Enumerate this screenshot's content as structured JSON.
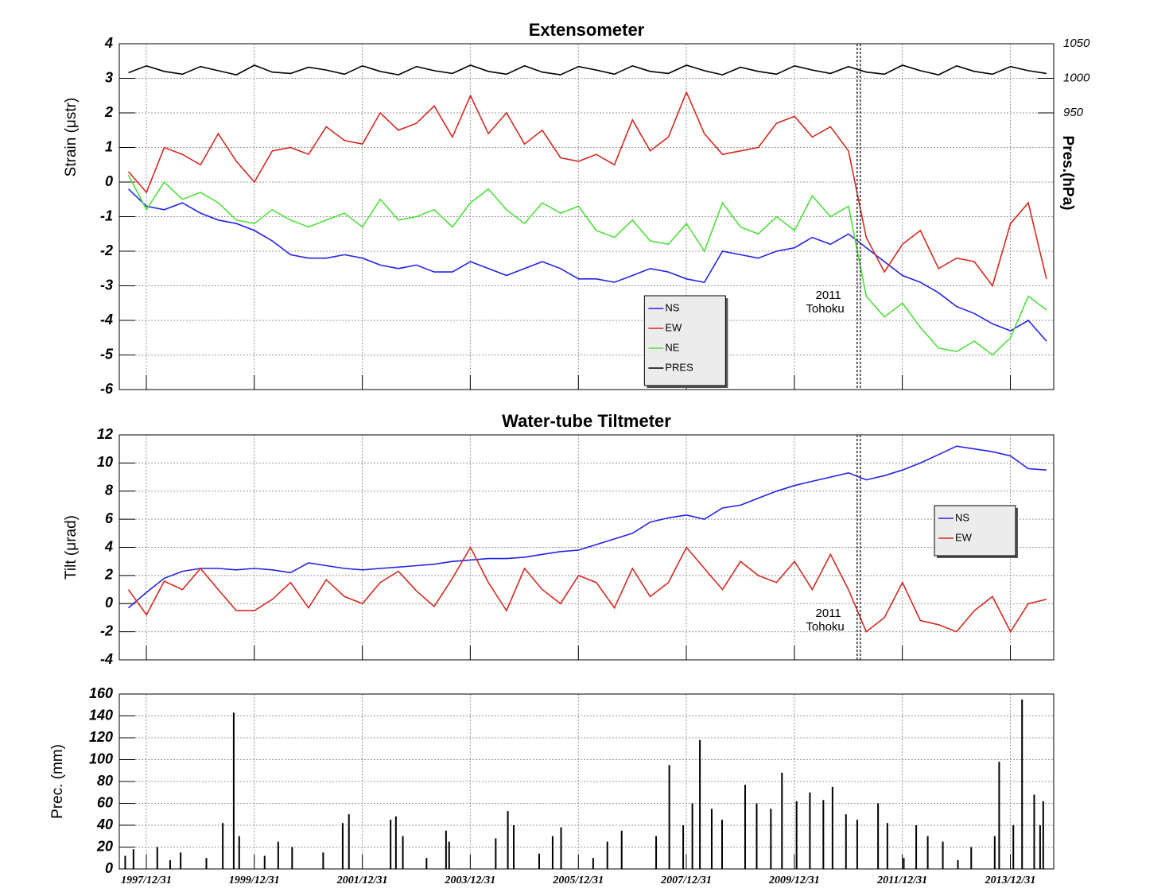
{
  "chart_data": [
    {
      "type": "line",
      "title": "Extensometer",
      "ylabel": "Strain (μstr)",
      "y2label": "Pres.(hPa)",
      "ylim": [
        -6,
        4
      ],
      "yticks": [
        -6,
        -5,
        -4,
        -3,
        -2,
        -1,
        0,
        1,
        2,
        3,
        4
      ],
      "y2lim": [
        550,
        1050
      ],
      "y2ticks": [
        950,
        1000,
        1050
      ],
      "xlim": [
        "1997-07-01",
        "2014-10-20"
      ],
      "xticks": [
        "1997-12-31",
        "1999-12-31",
        "2001-12-31",
        "2003-12-31",
        "2005-12-31",
        "2007-12-31",
        "2009-12-31",
        "2011-12-31",
        "2013-12-31"
      ],
      "grid": true,
      "legend": "lower center",
      "annotation": {
        "x": "2011-03-11",
        "lines": [
          "2011",
          "Tohoku"
        ]
      },
      "x": [
        "1997-09-01",
        "1998-01-01",
        "1998-05-01",
        "1998-09-01",
        "1999-01-01",
        "1999-05-01",
        "1999-09-01",
        "2000-01-01",
        "2000-05-01",
        "2000-09-01",
        "2001-01-01",
        "2001-05-01",
        "2001-09-01",
        "2002-01-01",
        "2002-05-01",
        "2002-09-01",
        "2003-01-01",
        "2003-05-01",
        "2003-09-01",
        "2004-01-01",
        "2004-05-01",
        "2004-09-01",
        "2005-01-01",
        "2005-05-01",
        "2005-09-01",
        "2006-01-01",
        "2006-05-01",
        "2006-09-01",
        "2007-01-01",
        "2007-05-01",
        "2007-09-01",
        "2008-01-01",
        "2008-05-01",
        "2008-09-01",
        "2009-01-01",
        "2009-05-01",
        "2009-09-01",
        "2010-01-01",
        "2010-05-01",
        "2010-09-01",
        "2011-01-01",
        "2011-05-01",
        "2011-09-01",
        "2012-01-01",
        "2012-05-01",
        "2012-09-01",
        "2013-01-01",
        "2013-05-01",
        "2013-09-01",
        "2014-01-01",
        "2014-05-01",
        "2014-09-01"
      ],
      "series": [
        {
          "name": "NS",
          "color": "#2323e6",
          "values": [
            -0.2,
            -0.7,
            -0.8,
            -0.6,
            -0.9,
            -1.1,
            -1.2,
            -1.4,
            -1.7,
            -2.1,
            -2.2,
            -2.2,
            -2.1,
            -2.2,
            -2.4,
            -2.5,
            -2.4,
            -2.6,
            -2.6,
            -2.3,
            -2.5,
            -2.7,
            -2.5,
            -2.3,
            -2.5,
            -2.8,
            -2.8,
            -2.9,
            -2.7,
            -2.5,
            -2.6,
            -2.8,
            -2.9,
            -2.0,
            -2.1,
            -2.2,
            -2.0,
            -1.9,
            -1.6,
            -1.8,
            -1.5,
            -1.9,
            -2.3,
            -2.7,
            -2.9,
            -3.2,
            -3.6,
            -3.8,
            -4.1,
            -4.3,
            -4.0,
            -4.6
          ]
        },
        {
          "name": "EW",
          "color": "#d42a20",
          "values": [
            0.3,
            -0.3,
            1.0,
            0.8,
            0.5,
            1.4,
            0.6,
            0.0,
            0.9,
            1.0,
            0.8,
            1.6,
            1.2,
            1.1,
            2.0,
            1.5,
            1.7,
            2.2,
            1.3,
            2.5,
            1.4,
            2.0,
            1.1,
            1.5,
            0.7,
            0.6,
            0.8,
            0.5,
            1.8,
            0.9,
            1.3,
            2.6,
            1.4,
            0.8,
            0.9,
            1.0,
            1.7,
            1.9,
            1.3,
            1.6,
            0.9,
            -1.6,
            -2.6,
            -1.8,
            -1.4,
            -2.5,
            -2.2,
            -2.3,
            -3.0,
            -1.2,
            -0.6,
            -2.8
          ]
        },
        {
          "name": "NE",
          "color": "#4ee03a",
          "values": [
            0.2,
            -0.8,
            0.0,
            -0.5,
            -0.3,
            -0.6,
            -1.1,
            -1.2,
            -0.8,
            -1.1,
            -1.3,
            -1.1,
            -0.9,
            -1.3,
            -0.5,
            -1.1,
            -1.0,
            -0.8,
            -1.3,
            -0.6,
            -0.2,
            -0.8,
            -1.2,
            -0.6,
            -0.9,
            -0.7,
            -1.4,
            -1.6,
            -1.1,
            -1.7,
            -1.8,
            -1.2,
            -2.0,
            -0.6,
            -1.3,
            -1.5,
            -1.0,
            -1.4,
            -0.4,
            -1.0,
            -0.7,
            -3.3,
            -3.9,
            -3.5,
            -4.2,
            -4.8,
            -4.9,
            -4.6,
            -5.0,
            -4.5,
            -3.3,
            -3.7
          ]
        },
        {
          "name": "PRES",
          "color": "#000000",
          "axis": "y2",
          "values": [
            1008,
            1018,
            1010,
            1006,
            1017,
            1011,
            1005,
            1019,
            1009,
            1007,
            1016,
            1012,
            1006,
            1018,
            1010,
            1005,
            1017,
            1011,
            1007,
            1019,
            1010,
            1006,
            1018,
            1009,
            1005,
            1017,
            1012,
            1006,
            1018,
            1010,
            1007,
            1019,
            1011,
            1005,
            1016,
            1010,
            1006,
            1018,
            1012,
            1007,
            1017,
            1009,
            1006,
            1019,
            1011,
            1005,
            1018,
            1010,
            1006,
            1017,
            1011,
            1007
          ]
        }
      ]
    },
    {
      "type": "line",
      "title": "Water-tube Tiltmeter",
      "ylabel": "Tilt (μrad)",
      "ylim": [
        -4,
        12
      ],
      "yticks": [
        -4,
        -2,
        0,
        2,
        4,
        6,
        8,
        10,
        12
      ],
      "xlim": [
        "1997-07-01",
        "2014-10-20"
      ],
      "xticks": [
        "1997-12-31",
        "1999-12-31",
        "2001-12-31",
        "2003-12-31",
        "2005-12-31",
        "2007-12-31",
        "2009-12-31",
        "2011-12-31",
        "2013-12-31"
      ],
      "grid": true,
      "legend": "upper right",
      "annotation": {
        "x": "2011-03-11",
        "lines": [
          "2011",
          "Tohoku"
        ]
      },
      "x": [
        "1997-09-01",
        "1998-01-01",
        "1998-05-01",
        "1998-09-01",
        "1999-01-01",
        "1999-05-01",
        "1999-09-01",
        "2000-01-01",
        "2000-05-01",
        "2000-09-01",
        "2001-01-01",
        "2001-05-01",
        "2001-09-01",
        "2002-01-01",
        "2002-05-01",
        "2002-09-01",
        "2003-01-01",
        "2003-05-01",
        "2003-09-01",
        "2004-01-01",
        "2004-05-01",
        "2004-09-01",
        "2005-01-01",
        "2005-05-01",
        "2005-09-01",
        "2006-01-01",
        "2006-05-01",
        "2006-09-01",
        "2007-01-01",
        "2007-05-01",
        "2007-09-01",
        "2008-01-01",
        "2008-05-01",
        "2008-09-01",
        "2009-01-01",
        "2009-05-01",
        "2009-09-01",
        "2010-01-01",
        "2010-05-01",
        "2010-09-01",
        "2011-01-01",
        "2011-05-01",
        "2011-09-01",
        "2012-01-01",
        "2012-05-01",
        "2012-09-01",
        "2013-01-01",
        "2013-05-01",
        "2013-09-01",
        "2014-01-01",
        "2014-05-01",
        "2014-09-01"
      ],
      "series": [
        {
          "name": "NS",
          "color": "#2323e6",
          "values": [
            -0.3,
            0.8,
            1.8,
            2.3,
            2.5,
            2.5,
            2.4,
            2.5,
            2.4,
            2.2,
            2.9,
            2.7,
            2.5,
            2.4,
            2.5,
            2.6,
            2.7,
            2.8,
            3.0,
            3.1,
            3.2,
            3.2,
            3.3,
            3.5,
            3.7,
            3.8,
            4.2,
            4.6,
            5.0,
            5.8,
            6.1,
            6.3,
            6.0,
            6.8,
            7.0,
            7.5,
            8.0,
            8.4,
            8.7,
            9.0,
            9.3,
            8.8,
            9.1,
            9.5,
            10.0,
            10.6,
            11.2,
            11.0,
            10.8,
            10.5,
            9.6,
            9.5
          ]
        },
        {
          "name": "EW",
          "color": "#d42a20",
          "values": [
            1.0,
            -0.8,
            1.6,
            1.0,
            2.5,
            1.0,
            -0.5,
            -0.5,
            0.3,
            1.5,
            -0.3,
            1.7,
            0.5,
            0.0,
            1.5,
            2.3,
            0.9,
            -0.2,
            1.8,
            4.0,
            1.5,
            -0.5,
            2.5,
            1.0,
            0.0,
            2.0,
            1.5,
            -0.3,
            2.5,
            0.5,
            1.5,
            4.0,
            2.5,
            1.0,
            3.0,
            2.0,
            1.5,
            3.0,
            1.0,
            3.5,
            1.0,
            -2.0,
            -1.0,
            1.5,
            -1.2,
            -1.5,
            -2.0,
            -0.5,
            0.5,
            -2.0,
            0.0,
            0.3
          ]
        }
      ]
    },
    {
      "type": "bar",
      "ylabel": "Prec. (mm)",
      "color": "#000000",
      "ylim": [
        0,
        160
      ],
      "yticks": [
        0,
        20,
        40,
        60,
        80,
        100,
        120,
        140,
        160
      ],
      "xlim": [
        "1997-07-01",
        "2014-10-20"
      ],
      "xticks": [
        {
          "value": "1997-12-31",
          "label": "1997/12/31"
        },
        {
          "value": "1999-12-31",
          "label": "1999/12/31"
        },
        {
          "value": "2001-12-31",
          "label": "2001/12/31"
        },
        {
          "value": "2003-12-31",
          "label": "2003/12/31"
        },
        {
          "value": "2005-12-31",
          "label": "2005/12/31"
        },
        {
          "value": "2007-12-31",
          "label": "2007/12/31"
        },
        {
          "value": "2009-12-31",
          "label": "2009/12/31"
        },
        {
          "value": "2011-12-31",
          "label": "2011/12/31"
        },
        {
          "value": "2013-12-31",
          "label": "2013/12/31"
        }
      ],
      "grid": true,
      "x": [
        "1997-08-10",
        "1997-10-05",
        "1998-03-15",
        "1998-06-10",
        "1998-08-20",
        "1999-02-10",
        "1999-06-01",
        "1999-08-14",
        "1999-09-20",
        "2000-03-10",
        "2000-06-10",
        "2000-09-12",
        "2001-04-10",
        "2001-08-20",
        "2001-10-01",
        "2002-07-10",
        "2002-08-15",
        "2002-10-01",
        "2003-03-10",
        "2003-07-20",
        "2003-08-10",
        "2004-06-20",
        "2004-09-10",
        "2004-10-20",
        "2005-04-10",
        "2005-07-10",
        "2005-09-05",
        "2006-04-10",
        "2006-07-15",
        "2006-10-20",
        "2007-06-10",
        "2007-09-07",
        "2007-12-10",
        "2008-02-10",
        "2008-04-01",
        "2008-06-20",
        "2008-08-29",
        "2009-02-01",
        "2009-04-20",
        "2009-07-25",
        "2009-10-08",
        "2010-01-15",
        "2010-04-15",
        "2010-07-15",
        "2010-09-15",
        "2010-12-15",
        "2011-03-01",
        "2011-07-20",
        "2011-09-21",
        "2012-01-10",
        "2012-04-03",
        "2012-06-20",
        "2012-09-30",
        "2013-01-10",
        "2013-04-10",
        "2013-09-16",
        "2013-10-16",
        "2014-01-20",
        "2014-03-20",
        "2014-06-10",
        "2014-07-20",
        "2014-08-10"
      ],
      "values": [
        12,
        18,
        20,
        8,
        15,
        10,
        42,
        143,
        30,
        12,
        25,
        20,
        15,
        42,
        50,
        45,
        48,
        30,
        10,
        35,
        25,
        28,
        53,
        40,
        14,
        30,
        38,
        10,
        25,
        35,
        30,
        95,
        40,
        60,
        118,
        55,
        45,
        77,
        60,
        55,
        88,
        62,
        70,
        63,
        75,
        50,
        45,
        60,
        42,
        10,
        40,
        30,
        25,
        8,
        20,
        30,
        98,
        40,
        155,
        68,
        40,
        62
      ]
    }
  ]
}
